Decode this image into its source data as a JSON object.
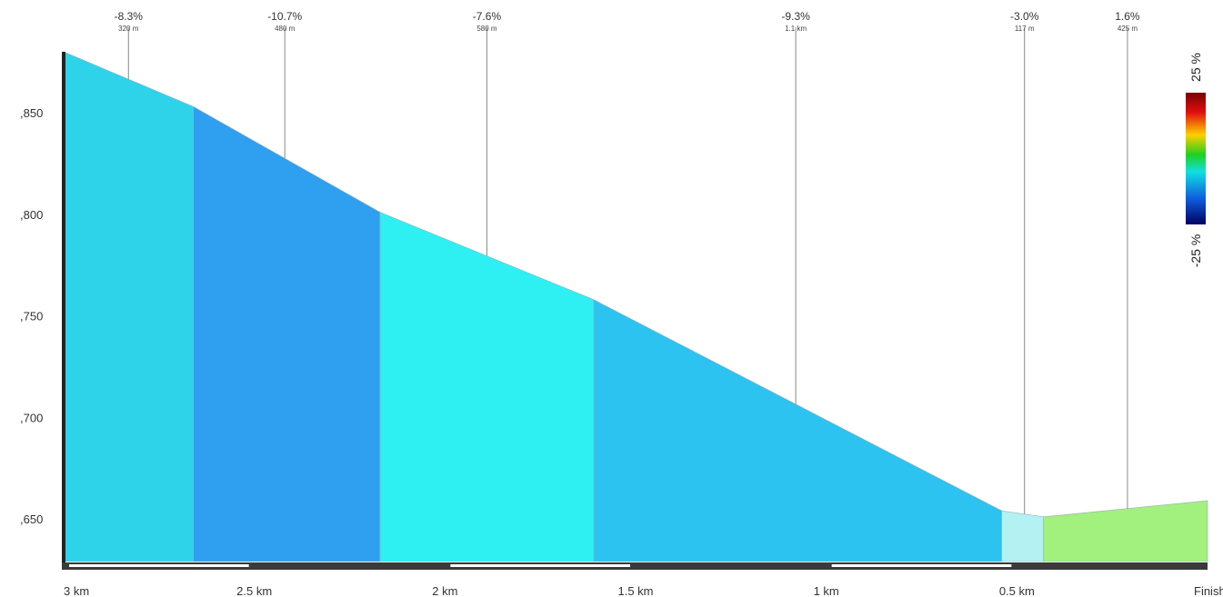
{
  "chart_data": {
    "type": "area",
    "title": "",
    "xlabel": "",
    "ylabel": "",
    "x_ticks": [
      {
        "km_to_go": 3,
        "label": "3 km"
      },
      {
        "km_to_go": 2.5,
        "label": "2.5 km"
      },
      {
        "km_to_go": 2,
        "label": "2 km"
      },
      {
        "km_to_go": 1.5,
        "label": "1.5 km"
      },
      {
        "km_to_go": 1,
        "label": "1 km"
      },
      {
        "km_to_go": 0.5,
        "label": "0.5 km"
      },
      {
        "km_to_go": 0,
        "label": "Finish"
      }
    ],
    "y_ticks": [
      {
        "value": 1850,
        "label": ",850"
      },
      {
        "value": 1800,
        "label": ",800"
      },
      {
        "value": 1750,
        "label": ",750"
      },
      {
        "value": 1700,
        "label": ",700"
      },
      {
        "value": 1650,
        "label": ",650"
      }
    ],
    "xlim": [
      3,
      0
    ],
    "ylim": [
      1629,
      1880
    ],
    "segments": [
      {
        "start_km": 3.0,
        "end_km": 2.66,
        "start_elev": 1880,
        "end_elev": 1853,
        "grade": "-8.3%",
        "length": "320 m",
        "color": "#2ed3ea"
      },
      {
        "start_km": 2.66,
        "end_km": 2.17,
        "start_elev": 1853,
        "end_elev": 1801,
        "grade": "-10.7%",
        "length": "480 m",
        "color": "#2f9ff0"
      },
      {
        "start_km": 2.17,
        "end_km": 1.61,
        "start_elev": 1801,
        "end_elev": 1758,
        "grade": "-7.6%",
        "length": "580 m",
        "color": "#2ef0f2"
      },
      {
        "start_km": 1.61,
        "end_km": 0.54,
        "start_elev": 1758,
        "end_elev": 1654,
        "grade": "-9.3%",
        "length": "1.1 km",
        "color": "#2cc3f0"
      },
      {
        "start_km": 0.54,
        "end_km": 0.43,
        "start_elev": 1654,
        "end_elev": 1651,
        "grade": "-3.0%",
        "length": "117 m",
        "color": "#b3f1f3"
      },
      {
        "start_km": 0.43,
        "end_km": 0.0,
        "start_elev": 1651,
        "end_elev": 1659,
        "grade": "1.6%",
        "length": "425 m",
        "color": "#a2f07e"
      }
    ],
    "label_positions_km": [
      2.83,
      2.42,
      1.89,
      1.08,
      0.48,
      0.21
    ],
    "color_scale": {
      "max_label": "25 %",
      "min_label": "-25 %"
    },
    "grid": false,
    "legend": "right"
  }
}
